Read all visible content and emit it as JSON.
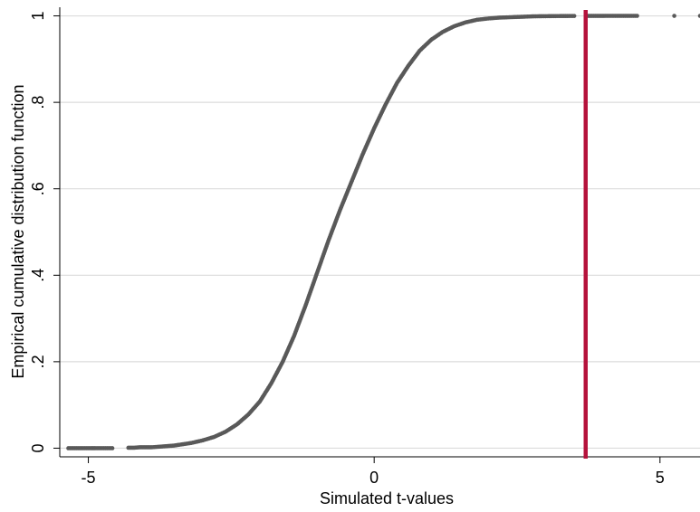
{
  "chart_data": {
    "type": "scatter",
    "title": "",
    "xlabel": "Simulated t-values",
    "ylabel": "Empirical cumulative distribution function",
    "xlim": [
      -5.5,
      5.7
    ],
    "ylim": [
      -0.02,
      1.02
    ],
    "x_ticks": [
      {
        "value": -5,
        "label": "-5"
      },
      {
        "value": 0,
        "label": "0"
      },
      {
        "value": 5,
        "label": "5"
      }
    ],
    "y_ticks": [
      {
        "value": 0,
        "label": "0"
      },
      {
        "value": 0.2,
        "label": ".2"
      },
      {
        "value": 0.4,
        "label": ".4"
      },
      {
        "value": 0.6,
        "label": ".6"
      },
      {
        "value": 0.8,
        "label": ".8"
      },
      {
        "value": 1,
        "label": "1"
      }
    ],
    "grid": "horizontal",
    "point_color": "#595959",
    "series": [
      {
        "marker": "dot",
        "color": "#595959",
        "x": [
          -5.35,
          -5.15,
          -4.95,
          -4.88,
          -4.7,
          -4.58,
          -4.3,
          -4.2,
          -4.1,
          -4.0,
          -3.9,
          -3.8,
          -3.7,
          -3.6,
          -3.5,
          -3.4,
          -3.2,
          -3.0,
          -2.8,
          -2.6,
          -2.4,
          -2.2,
          -2.0,
          -1.8,
          -1.6,
          -1.4,
          -1.2,
          -1.0,
          -0.8,
          -0.6,
          -0.4,
          -0.2,
          0.0,
          0.2,
          0.4,
          0.6,
          0.8,
          1.0,
          1.2,
          1.4,
          1.6,
          1.8,
          2.0,
          2.2,
          2.4,
          2.6,
          2.8,
          3.0,
          3.2,
          3.35,
          3.5,
          3.75,
          3.9,
          4.05,
          4.25,
          4.45,
          4.6,
          5.25,
          5.7
        ],
        "y": [
          0.0,
          0.0,
          0.0,
          0.0,
          0.0,
          0.0,
          0.001,
          0.001,
          0.002,
          0.002,
          0.002,
          0.003,
          0.004,
          0.005,
          0.006,
          0.008,
          0.012,
          0.018,
          0.026,
          0.038,
          0.055,
          0.078,
          0.108,
          0.15,
          0.2,
          0.26,
          0.33,
          0.405,
          0.48,
          0.55,
          0.615,
          0.68,
          0.74,
          0.795,
          0.845,
          0.885,
          0.92,
          0.945,
          0.963,
          0.976,
          0.985,
          0.991,
          0.994,
          0.996,
          0.997,
          0.998,
          0.999,
          0.9993,
          0.9996,
          0.9997,
          0.9998,
          0.9999,
          0.9999,
          1.0,
          1.0,
          1.0,
          1.0,
          1.0,
          1.0
        ]
      }
    ],
    "reference_line": {
      "orientation": "vertical",
      "x": 3.7,
      "color": "#B5123C"
    }
  }
}
